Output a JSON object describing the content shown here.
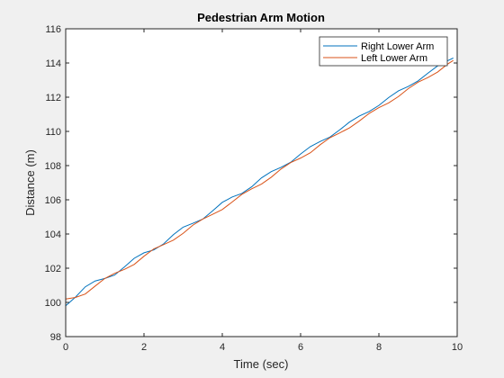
{
  "chart_data": {
    "type": "line",
    "title": "Pedestrian Arm Motion",
    "xlabel": "Time (sec)",
    "ylabel": "Distance (m)",
    "xlim": [
      0,
      10
    ],
    "ylim": [
      98,
      116
    ],
    "xticks": [
      0,
      2,
      4,
      6,
      8,
      10
    ],
    "yticks": [
      98,
      100,
      102,
      104,
      106,
      108,
      110,
      112,
      114,
      116
    ],
    "grid": false,
    "legend_location": "top-right",
    "background_color": "#f0f0f0",
    "plot_background_color": "#ffffff",
    "x": [
      0.0,
      0.25,
      0.5,
      0.75,
      1.0,
      1.25,
      1.5,
      1.75,
      2.0,
      2.25,
      2.5,
      2.75,
      3.0,
      3.25,
      3.5,
      3.75,
      4.0,
      4.25,
      4.5,
      4.75,
      5.0,
      5.25,
      5.5,
      5.75,
      6.0,
      6.25,
      6.5,
      6.75,
      7.0,
      7.25,
      7.5,
      7.75,
      8.0,
      8.25,
      8.5,
      8.75,
      9.0,
      9.25,
      9.5,
      9.75,
      9.9
    ],
    "series": [
      {
        "name": "Right Lower Arm",
        "color": "#0072bd",
        "values": [
          99.8,
          100.31,
          100.91,
          101.25,
          101.4,
          101.6,
          102.07,
          102.58,
          102.9,
          103.07,
          103.42,
          103.96,
          104.4,
          104.63,
          104.87,
          105.35,
          105.85,
          106.16,
          106.37,
          106.76,
          107.28,
          107.65,
          107.9,
          108.2,
          108.68,
          109.11,
          109.41,
          109.67,
          110.09,
          110.55,
          110.9,
          111.16,
          111.52,
          111.98,
          112.37,
          112.63,
          112.95,
          113.4,
          113.83,
          114.13,
          114.29
        ]
      },
      {
        "name": "Left Lower Arm",
        "color": "#d95319",
        "values": [
          100.2,
          100.29,
          100.49,
          100.95,
          101.4,
          101.7,
          101.93,
          102.22,
          102.7,
          103.13,
          103.38,
          103.64,
          104.04,
          104.52,
          104.87,
          105.15,
          105.43,
          105.87,
          106.32,
          106.64,
          106.92,
          107.32,
          107.8,
          108.18,
          108.44,
          108.75,
          109.22,
          109.63,
          109.91,
          110.21,
          110.61,
          111.05,
          111.39,
          111.67,
          112.04,
          112.5,
          112.88,
          113.15,
          113.47,
          113.93,
          114.15
        ]
      }
    ]
  }
}
